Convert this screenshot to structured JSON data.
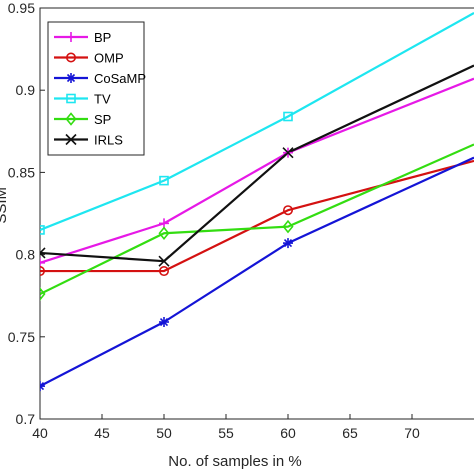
{
  "chart_data": {
    "type": "line",
    "title": "",
    "xlabel": "No. of samples in %",
    "ylabel": "SSIM",
    "xlim": [
      40,
      75
    ],
    "ylim": [
      0.7,
      0.95
    ],
    "x_ticks": [
      "40",
      "45",
      "50",
      "55",
      "60",
      "65",
      "70"
    ],
    "y_ticks": [
      "0.7",
      "0.75",
      "0.8",
      "0.85",
      "0.9",
      "0.95"
    ],
    "grid": false,
    "legend_position": "top-left",
    "x": [
      40,
      50,
      60,
      75
    ],
    "series": [
      {
        "name": "BP",
        "values": [
          0.795,
          0.819,
          0.862,
          0.907
        ],
        "color": "#e619e6",
        "marker": "plus"
      },
      {
        "name": "OMP",
        "values": [
          0.79,
          0.79,
          0.827,
          0.857
        ],
        "color": "#d41111",
        "marker": "circle"
      },
      {
        "name": "CoSaMP",
        "values": [
          0.72,
          0.759,
          0.807,
          0.859
        ],
        "color": "#1414d6",
        "marker": "asterisk"
      },
      {
        "name": "TV",
        "values": [
          0.815,
          0.845,
          0.884,
          0.947
        ],
        "color": "#1ee6f0",
        "marker": "square"
      },
      {
        "name": "SP",
        "values": [
          0.776,
          0.813,
          0.817,
          0.867
        ],
        "color": "#33dd11",
        "marker": "diamond"
      },
      {
        "name": "IRLS",
        "values": [
          0.801,
          0.796,
          0.862,
          0.915
        ],
        "color": "#111111",
        "marker": "x"
      }
    ]
  }
}
